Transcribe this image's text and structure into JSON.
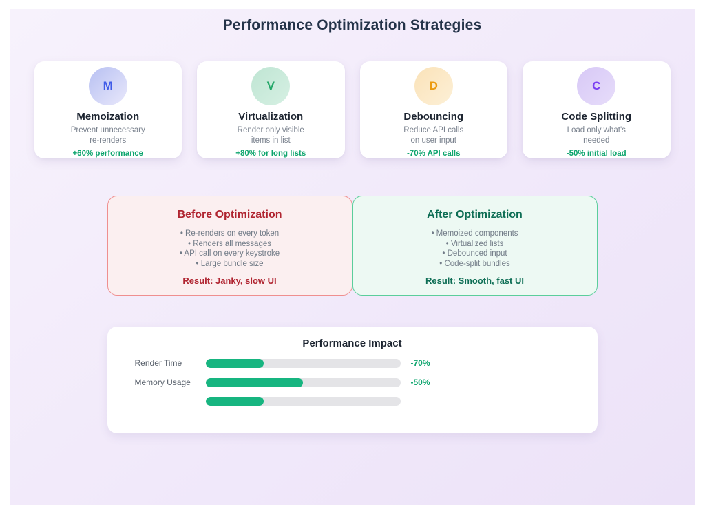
{
  "page": {
    "title": "Performance Optimization Strategies"
  },
  "colors": {
    "title_navy": "#243349",
    "green_accent": "#0ea56e",
    "bar_fill": "#17b580",
    "bar_track": "#e4e4e7",
    "before_accent": "#b02531",
    "before_border": "#ef8f8f",
    "before_bg": "#fbeff0",
    "after_accent": "#0e6e55",
    "after_border": "#5bce9b",
    "after_bg": "#edf9f3",
    "text_gray": "#717b87"
  },
  "strategy_cards": [
    {
      "letter": "M",
      "letter_color": "#3f5be8",
      "circle_from": "#b7c0f2",
      "circle_to": "#e9e8fb",
      "title": "Memoization",
      "desc_line1": "Prevent unnecessary",
      "desc_line2": "re-renders",
      "stat": "+60% performance"
    },
    {
      "letter": "V",
      "letter_color": "#23a768",
      "circle_from": "#bfe5d3",
      "circle_to": "#d6f0e3",
      "title": "Virtualization",
      "desc_line1": "Render only visible",
      "desc_line2": "items in list",
      "stat": "+80% for long lists"
    },
    {
      "letter": "D",
      "letter_color": "#eb9a10",
      "circle_from": "#fae2b8",
      "circle_to": "#fdf0d7",
      "title": "Debouncing",
      "desc_line1": "Reduce API calls",
      "desc_line2": "on user input",
      "stat": "-70% API calls"
    },
    {
      "letter": "C",
      "letter_color": "#7b3ff2",
      "circle_from": "#d7c8f6",
      "circle_to": "#e7ddfa",
      "title": "Code Splitting",
      "desc_line1": "Load only what's",
      "desc_line2": "needed",
      "stat": "-50% initial load"
    }
  ],
  "comparison": {
    "before": {
      "title": "Before Optimization",
      "bullets": [
        "• Re-renders on every token",
        "• Renders all messages",
        "• API call on every keystroke",
        "• Large bundle size"
      ],
      "result": "Result: Janky, slow UI"
    },
    "after": {
      "title": "After Optimization",
      "bullets": [
        "• Memoized components",
        "• Virtualized lists",
        "• Debounced input",
        "• Code-split bundles"
      ],
      "result": "Result: Smooth, fast UI"
    }
  },
  "chart_data": {
    "type": "bar",
    "title": "Performance Impact",
    "orientation": "horizontal",
    "categories": [
      "Render Time",
      "Memory Usage",
      ""
    ],
    "values": [
      30,
      50,
      30
    ],
    "value_labels": [
      "-70%",
      "-50%",
      ""
    ],
    "xlim": [
      0,
      100
    ],
    "grid": false,
    "legend": "none"
  },
  "impact": {
    "title": "Performance Impact",
    "bars": [
      {
        "label": "Render Time",
        "value": "-70%",
        "fill_pct": 30
      },
      {
        "label": "Memory Usage",
        "value": "-50%",
        "fill_pct": 50
      },
      {
        "label": "",
        "value": "",
        "fill_pct": 30
      }
    ]
  }
}
